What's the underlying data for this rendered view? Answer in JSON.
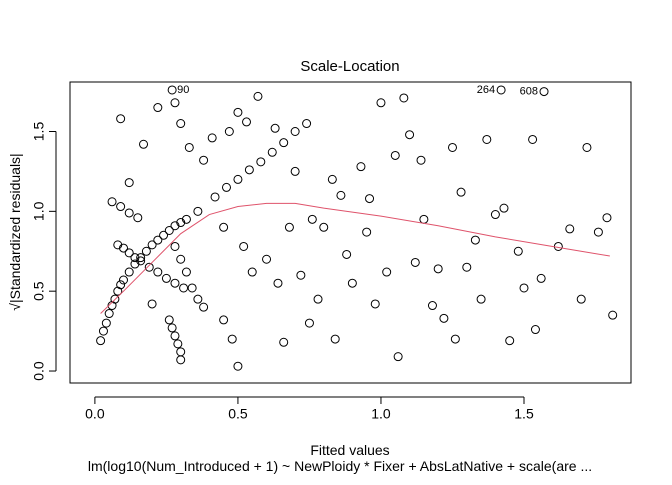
{
  "chart_data": {
    "type": "scatter",
    "title": "Scale-Location",
    "xlabel": "Fitted values",
    "subtitle": "lm(log10(Num_Introduced + 1) ~ NewPloidy * Fixer + AbsLatNative + scale(are ...",
    "ylabel": "√|Standardized residuals|",
    "xlim": [
      -0.087,
      1.874
    ],
    "ylim": [
      -0.075,
      1.81
    ],
    "xticks": [
      {
        "value": 0,
        "label": "0.0"
      },
      {
        "value": 0.5,
        "label": "0.5"
      },
      {
        "value": 1,
        "label": "1.0"
      },
      {
        "value": 1.5,
        "label": "1.5"
      }
    ],
    "yticks": [
      {
        "value": 0,
        "label": "0.0"
      },
      {
        "value": 0.5,
        "label": "0.5"
      },
      {
        "value": 1,
        "label": "1.0"
      },
      {
        "value": 1.5,
        "label": "1.5"
      }
    ],
    "series": [
      {
        "color": "#000000",
        "x": [
          0.02,
          0.03,
          0.04,
          0.05,
          0.06,
          0.07,
          0.08,
          0.09,
          0.1,
          0.12,
          0.14,
          0.16,
          0.18,
          0.2,
          0.22,
          0.24,
          0.26,
          0.28,
          0.3,
          0.32,
          0.36,
          0.42,
          0.46,
          0.5,
          0.54,
          0.58,
          0.62,
          0.66,
          0.7,
          0.74,
          0.08,
          0.1,
          0.12,
          0.14,
          0.16,
          0.19,
          0.22,
          0.25,
          0.28,
          0.31,
          0.06,
          0.09,
          0.12,
          0.15,
          0.28,
          0.3,
          0.32,
          0.34,
          0.36,
          0.38,
          0.26,
          0.27,
          0.28,
          0.29,
          0.3,
          0.3,
          0.2,
          0.45,
          0.48,
          0.5,
          0.09,
          0.12,
          0.17,
          0.22,
          0.28,
          0.3,
          0.33,
          0.38,
          0.41,
          0.47,
          0.5,
          0.53,
          0.57,
          0.63,
          0.45,
          0.52,
          0.55,
          0.6,
          0.64,
          0.68,
          0.72,
          0.75,
          0.78,
          0.8,
          0.83,
          0.86,
          0.88,
          0.9,
          0.93,
          0.95,
          0.98,
          1.0,
          1.02,
          1.05,
          1.06,
          1.08,
          1.1,
          1.12,
          1.15,
          1.18,
          1.2,
          1.22,
          1.25,
          1.26,
          1.28,
          1.3,
          1.33,
          1.35,
          1.37,
          1.4,
          1.43,
          1.45,
          1.48,
          1.5,
          1.53,
          1.54,
          1.56,
          1.62,
          1.66,
          1.7,
          1.72,
          1.76,
          1.79,
          1.81,
          0.66,
          0.7,
          0.76,
          0.84,
          0.96,
          1.14
        ],
        "values": [
          0.19,
          0.25,
          0.3,
          0.36,
          0.41,
          0.45,
          0.5,
          0.54,
          0.57,
          0.62,
          0.67,
          0.71,
          0.75,
          0.79,
          0.82,
          0.85,
          0.88,
          0.91,
          0.93,
          0.95,
          1.0,
          1.09,
          1.15,
          1.2,
          1.26,
          1.31,
          1.37,
          1.43,
          1.5,
          1.55,
          0.79,
          0.77,
          0.74,
          0.71,
          0.69,
          0.65,
          0.62,
          0.58,
          0.55,
          0.52,
          1.06,
          1.03,
          0.99,
          0.96,
          0.78,
          0.7,
          0.62,
          0.52,
          0.45,
          0.4,
          0.32,
          0.27,
          0.22,
          0.17,
          0.12,
          0.07,
          0.42,
          0.32,
          0.2,
          0.03,
          1.58,
          1.18,
          1.42,
          1.65,
          1.68,
          1.55,
          1.4,
          1.32,
          1.46,
          1.5,
          1.62,
          1.56,
          1.72,
          1.52,
          0.9,
          0.78,
          0.62,
          0.7,
          0.55,
          0.9,
          0.6,
          0.3,
          0.45,
          0.9,
          1.2,
          1.1,
          0.73,
          0.55,
          1.28,
          0.87,
          0.42,
          1.68,
          0.62,
          1.35,
          0.09,
          1.71,
          1.48,
          0.68,
          0.95,
          0.41,
          0.64,
          0.33,
          1.4,
          0.2,
          1.12,
          0.65,
          0.82,
          0.45,
          1.45,
          0.98,
          1.02,
          0.19,
          0.75,
          0.52,
          1.45,
          0.26,
          0.58,
          0.78,
          0.89,
          0.45,
          1.4,
          0.87,
          0.96,
          0.35,
          0.18,
          1.25,
          0.95,
          0.2,
          1.08,
          1.32
        ]
      },
      {
        "color": "#000000",
        "x": [
          0.27,
          1.42,
          1.57
        ],
        "values": [
          1.76,
          1.76,
          1.75
        ],
        "labels": [
          "90",
          "264",
          "608"
        ]
      }
    ],
    "smoother": {
      "color": "#DF536B",
      "x": [
        0.02,
        0.1,
        0.2,
        0.3,
        0.4,
        0.5,
        0.6,
        0.7,
        0.8,
        1.0,
        1.2,
        1.4,
        1.6,
        1.8
      ],
      "values": [
        0.36,
        0.5,
        0.68,
        0.86,
        0.98,
        1.03,
        1.05,
        1.05,
        1.02,
        0.97,
        0.91,
        0.84,
        0.78,
        0.72
      ]
    }
  }
}
